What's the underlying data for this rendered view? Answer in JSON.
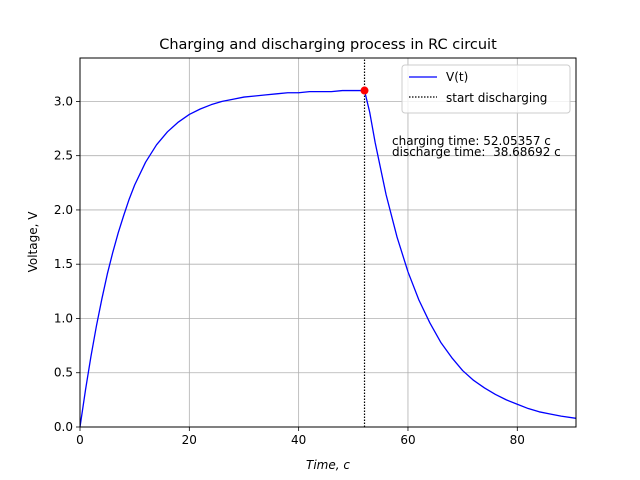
{
  "chart_data": {
    "type": "line",
    "title": "Charging and discharging process in RC circuit",
    "xlabel": "Time, c",
    "ylabel": "Voltage, V",
    "xlim": [
      0,
      90.74
    ],
    "ylim": [
      0,
      3.4
    ],
    "xticks": [
      0,
      20,
      40,
      60,
      80
    ],
    "yticks": [
      0.0,
      0.5,
      1.0,
      1.5,
      2.0,
      2.5,
      3.0
    ],
    "xtick_labels": [
      "0",
      "20",
      "40",
      "60",
      "80"
    ],
    "ytick_labels": [
      "0.0",
      "0.5",
      "1.0",
      "1.5",
      "2.0",
      "2.5",
      "3.0"
    ],
    "grid": true,
    "legend_position": "upper-right",
    "series": [
      {
        "name": "V(t)",
        "color": "#0000ff",
        "x": [
          0,
          1,
          2,
          3,
          4,
          5,
          6,
          7,
          8,
          9,
          10,
          12,
          14,
          16,
          18,
          20,
          22,
          24,
          26,
          28,
          30,
          32,
          34,
          36,
          38,
          40,
          42,
          44,
          46,
          48,
          50,
          52.05,
          53,
          54,
          56,
          58,
          60,
          62,
          64,
          66,
          68,
          70,
          72,
          74,
          76,
          78,
          80,
          82,
          84,
          86,
          88,
          90.74
        ],
        "y": [
          0.0,
          0.34,
          0.65,
          0.93,
          1.18,
          1.41,
          1.61,
          1.79,
          1.95,
          2.1,
          2.23,
          2.44,
          2.6,
          2.72,
          2.81,
          2.88,
          2.93,
          2.97,
          3.0,
          3.02,
          3.04,
          3.05,
          3.06,
          3.07,
          3.08,
          3.08,
          3.09,
          3.09,
          3.09,
          3.1,
          3.1,
          3.1,
          2.9,
          2.62,
          2.14,
          1.75,
          1.43,
          1.17,
          0.96,
          0.78,
          0.64,
          0.52,
          0.43,
          0.36,
          0.3,
          0.25,
          0.21,
          0.17,
          0.14,
          0.12,
          0.1,
          0.08
        ]
      },
      {
        "name": "start discharging",
        "style": "dotted",
        "color": "#000000",
        "x": [
          52.05,
          52.05
        ],
        "y": [
          0,
          3.4
        ]
      }
    ],
    "marker": {
      "x": 52.05,
      "y": 3.1,
      "color": "#ff0000"
    },
    "annotations": [
      "charging time: 52.05357 c",
      "discharge time:  38.68692 c"
    ]
  }
}
